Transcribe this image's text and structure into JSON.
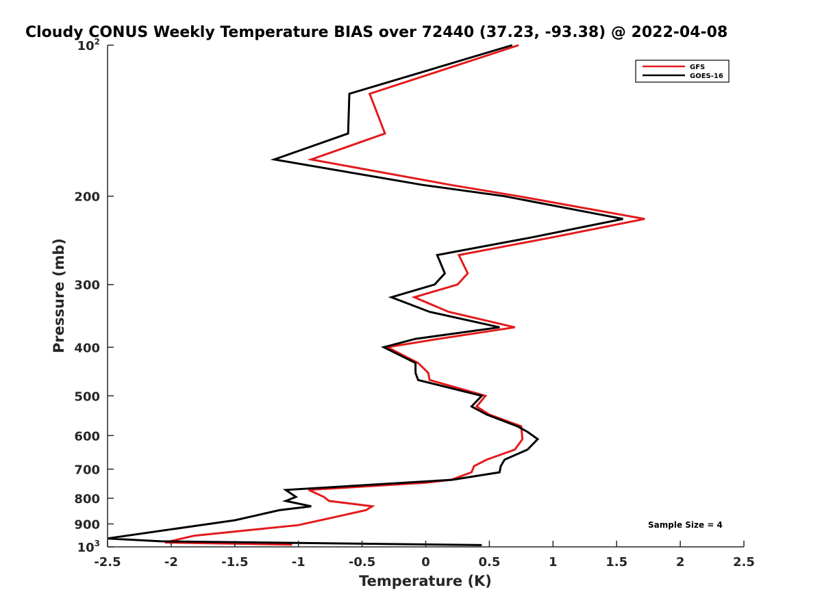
{
  "chart_data": {
    "type": "line",
    "title": "Cloudy CONUS Weekly Temperature BIAS over 72440 (37.23, -93.38) @ 2022-04-08",
    "xlabel": "Temperature (K)",
    "ylabel": "Pressure (mb)",
    "xlim": [
      -2.5,
      2.5
    ],
    "ylim": [
      100,
      1000
    ],
    "y_scale": "log",
    "y_reversed": true,
    "grid": false,
    "legend_position": "top-right",
    "x_ticks": [
      {
        "value": -2.5,
        "label": "-2.5"
      },
      {
        "value": -2,
        "label": "-2"
      },
      {
        "value": -1.5,
        "label": "-1.5"
      },
      {
        "value": -1,
        "label": "-1"
      },
      {
        "value": -0.5,
        "label": "-0.5"
      },
      {
        "value": 0,
        "label": "0"
      },
      {
        "value": 0.5,
        "label": "0.5"
      },
      {
        "value": 1,
        "label": "1"
      },
      {
        "value": 1.5,
        "label": "1.5"
      },
      {
        "value": 2,
        "label": "2"
      },
      {
        "value": 2.5,
        "label": "2.5"
      }
    ],
    "y_ticks": [
      {
        "value": 100,
        "label": "10",
        "sup": "2"
      },
      {
        "value": 200,
        "label": "200"
      },
      {
        "value": 300,
        "label": "300"
      },
      {
        "value": 400,
        "label": "400"
      },
      {
        "value": 500,
        "label": "500"
      },
      {
        "value": 600,
        "label": "600"
      },
      {
        "value": 700,
        "label": "700"
      },
      {
        "value": 800,
        "label": "800"
      },
      {
        "value": 900,
        "label": "900"
      },
      {
        "value": 1000,
        "label": "10",
        "sup": "3"
      }
    ],
    "series": [
      {
        "name": "GFS",
        "color": "#e41a1c",
        "points": [
          [
            0.73,
            100
          ],
          [
            -0.44,
            125
          ],
          [
            -0.32,
            150
          ],
          [
            -0.9,
            169
          ],
          [
            0.2,
            190
          ],
          [
            0.73,
            200
          ],
          [
            1.72,
            222
          ],
          [
            0.98,
            242
          ],
          [
            0.26,
            262
          ],
          [
            0.33,
            285
          ],
          [
            0.25,
            300
          ],
          [
            -0.09,
            318
          ],
          [
            0.18,
            340
          ],
          [
            0.7,
            365
          ],
          [
            0.1,
            385
          ],
          [
            -0.3,
            400
          ],
          [
            -0.06,
            430
          ],
          [
            0.02,
            450
          ],
          [
            0.03,
            465
          ],
          [
            0.47,
            500
          ],
          [
            0.4,
            525
          ],
          [
            0.5,
            545
          ],
          [
            0.75,
            575
          ],
          [
            0.76,
            610
          ],
          [
            0.7,
            640
          ],
          [
            0.48,
            670
          ],
          [
            0.38,
            690
          ],
          [
            0.36,
            710
          ],
          [
            0.2,
            735
          ],
          [
            0.0,
            745
          ],
          [
            -0.92,
            770
          ],
          [
            -0.8,
            795
          ],
          [
            -0.76,
            810
          ],
          [
            -0.42,
            830
          ],
          [
            -0.47,
            845
          ],
          [
            -1.0,
            905
          ],
          [
            -1.82,
            950
          ],
          [
            -2.05,
            980
          ],
          [
            -1.05,
            990
          ]
        ]
      },
      {
        "name": "GOES-16",
        "color": "#000000",
        "points": [
          [
            0.68,
            100
          ],
          [
            -0.6,
            125
          ],
          [
            -0.61,
            150
          ],
          [
            -1.19,
            169
          ],
          [
            -0.02,
            190
          ],
          [
            0.62,
            200
          ],
          [
            1.55,
            222
          ],
          [
            0.82,
            242
          ],
          [
            0.09,
            262
          ],
          [
            0.15,
            285
          ],
          [
            0.07,
            300
          ],
          [
            -0.27,
            318
          ],
          [
            0.03,
            340
          ],
          [
            0.58,
            365
          ],
          [
            -0.08,
            385
          ],
          [
            -0.33,
            400
          ],
          [
            -0.08,
            430
          ],
          [
            -0.08,
            450
          ],
          [
            -0.06,
            465
          ],
          [
            0.44,
            500
          ],
          [
            0.36,
            525
          ],
          [
            0.48,
            545
          ],
          [
            0.72,
            575
          ],
          [
            0.8,
            590
          ],
          [
            0.88,
            610
          ],
          [
            0.8,
            640
          ],
          [
            0.62,
            670
          ],
          [
            0.59,
            690
          ],
          [
            0.58,
            710
          ],
          [
            0.21,
            735
          ],
          [
            -1.1,
            770
          ],
          [
            -1.02,
            795
          ],
          [
            -1.1,
            810
          ],
          [
            -0.9,
            830
          ],
          [
            -1.15,
            845
          ],
          [
            -1.5,
            885
          ],
          [
            -2.5,
            962
          ],
          [
            -2.08,
            975
          ],
          [
            0.44,
            992
          ]
        ]
      }
    ],
    "annotations": [
      {
        "text": "Sample Size = 4",
        "position": "bottom-right"
      }
    ]
  }
}
